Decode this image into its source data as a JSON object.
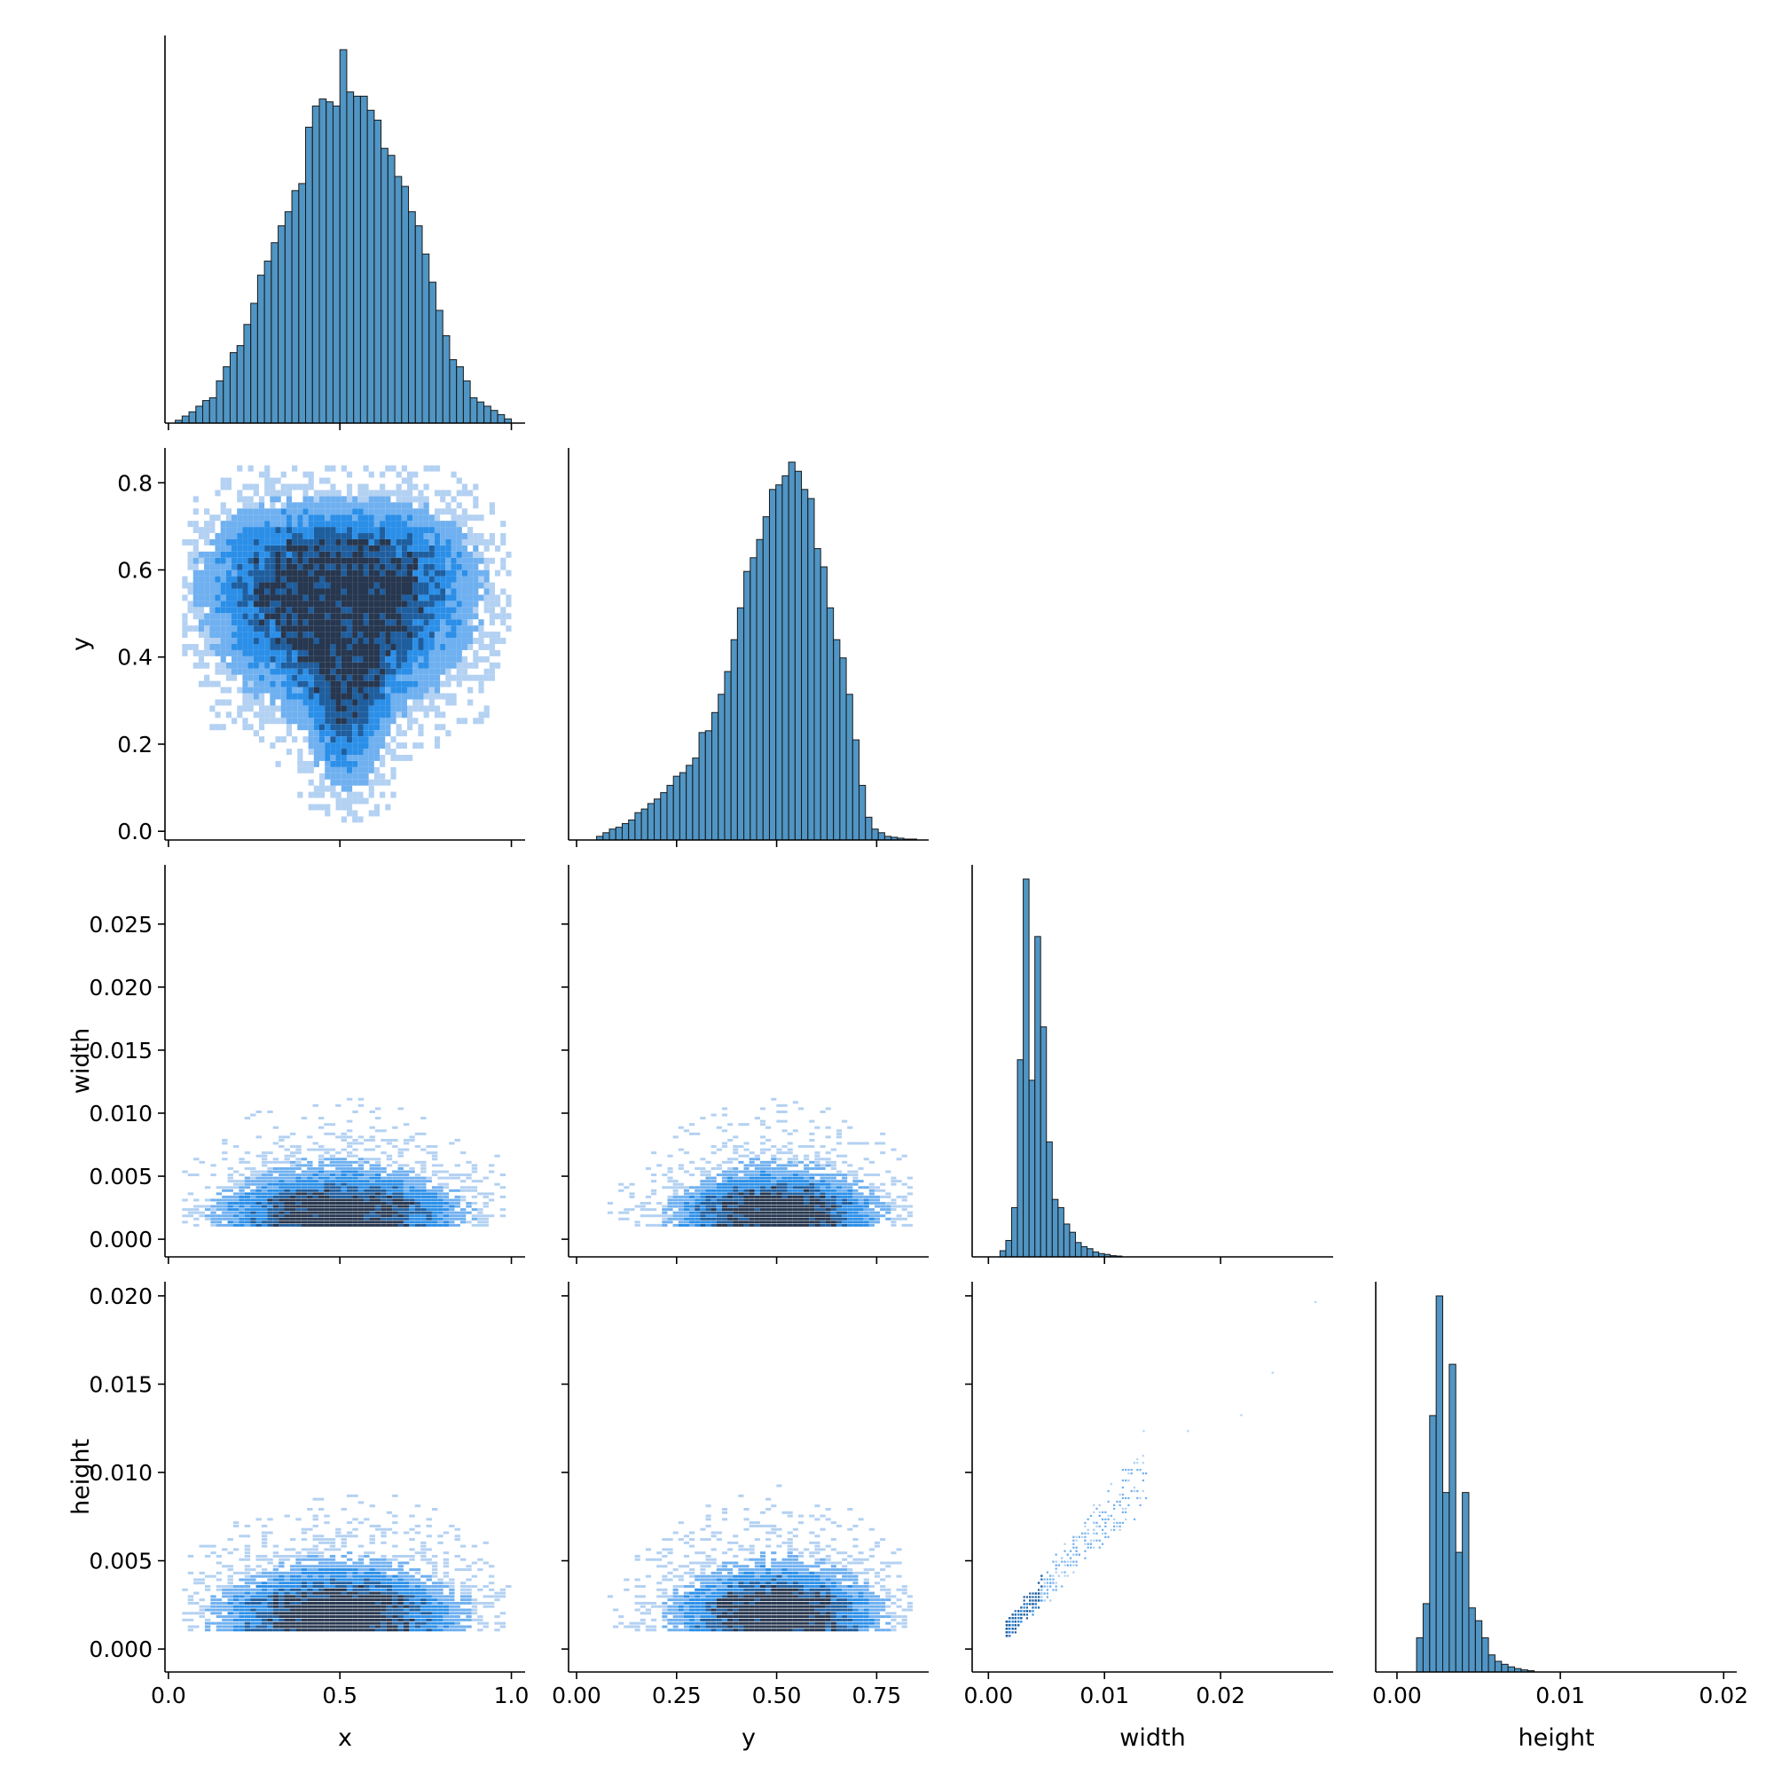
{
  "figure": {
    "type": "pairplot-corner",
    "variables": [
      "x",
      "y",
      "width",
      "height"
    ],
    "bar_color": "#1f77b4",
    "bar_edge_color": "#1a1a1a",
    "heatmap_colors": [
      "#b3d1f2",
      "#6fb0f0",
      "#2b8fe8",
      "#1f5e9e",
      "#27374f"
    ]
  },
  "chart_data": [
    {
      "type": "bar",
      "variable": "x",
      "xlim": [
        -0.01,
        1.04
      ],
      "xticks": [
        "0.0",
        "0.5",
        "1.0"
      ],
      "xtick_values": [
        0.0,
        0.5,
        1.0
      ],
      "bin_width": 0.02,
      "x": [
        0.03,
        0.05,
        0.07,
        0.09,
        0.11,
        0.13,
        0.15,
        0.17,
        0.19,
        0.21,
        0.23,
        0.25,
        0.27,
        0.29,
        0.31,
        0.33,
        0.35,
        0.37,
        0.39,
        0.41,
        0.43,
        0.45,
        0.47,
        0.49,
        0.51,
        0.53,
        0.55,
        0.57,
        0.59,
        0.61,
        0.63,
        0.65,
        0.67,
        0.69,
        0.71,
        0.73,
        0.75,
        0.77,
        0.79,
        0.81,
        0.83,
        0.85,
        0.87,
        0.89,
        0.91,
        0.93,
        0.95,
        0.97,
        0.99
      ],
      "values": [
        2,
        5,
        8,
        12,
        16,
        18,
        30,
        40,
        50,
        55,
        70,
        85,
        105,
        115,
        128,
        140,
        150,
        165,
        170,
        210,
        225,
        230,
        228,
        225,
        265,
        235,
        232,
        232,
        222,
        215,
        195,
        190,
        175,
        168,
        150,
        140,
        120,
        100,
        80,
        62,
        45,
        40,
        30,
        18,
        15,
        12,
        9,
        6,
        3
      ]
    },
    {
      "type": "heatmap",
      "x_variable": "x",
      "y_variable": "y",
      "ylabel": "y",
      "ylim": [
        -0.02,
        0.88
      ],
      "yticks": [
        "0.0",
        "0.2",
        "0.4",
        "0.6",
        "0.8"
      ],
      "ytick_values": [
        0.0,
        0.2,
        0.4,
        0.6,
        0.8
      ]
    },
    {
      "type": "bar",
      "variable": "y",
      "xlim": [
        -0.02,
        0.88
      ],
      "xticks": [
        "0.00",
        "0.25",
        "0.50",
        "0.75"
      ],
      "xtick_values": [
        0.0,
        0.25,
        0.5,
        0.75
      ],
      "bin_width": 0.016,
      "x": [
        0.058,
        0.074,
        0.09,
        0.106,
        0.122,
        0.138,
        0.154,
        0.17,
        0.186,
        0.202,
        0.218,
        0.234,
        0.25,
        0.266,
        0.282,
        0.298,
        0.314,
        0.33,
        0.346,
        0.362,
        0.378,
        0.394,
        0.41,
        0.426,
        0.442,
        0.458,
        0.474,
        0.49,
        0.506,
        0.522,
        0.538,
        0.554,
        0.57,
        0.586,
        0.602,
        0.618,
        0.634,
        0.65,
        0.666,
        0.682,
        0.698,
        0.714,
        0.73,
        0.746,
        0.762,
        0.778,
        0.794,
        0.81,
        0.826,
        0.842
      ],
      "values": [
        4,
        8,
        12,
        14,
        18,
        22,
        30,
        34,
        40,
        45,
        52,
        60,
        70,
        74,
        82,
        90,
        118,
        120,
        140,
        160,
        185,
        220,
        255,
        295,
        310,
        330,
        355,
        385,
        390,
        400,
        415,
        405,
        385,
        375,
        320,
        300,
        255,
        220,
        200,
        160,
        110,
        60,
        25,
        12,
        8,
        4,
        3,
        2,
        1,
        1
      ]
    },
    {
      "type": "heatmap",
      "x_variable": "x",
      "y_variable": "width",
      "ylabel": "width",
      "ylim": [
        -0.0014,
        0.0297
      ],
      "yticks": [
        "0.000",
        "0.005",
        "0.010",
        "0.015",
        "0.020",
        "0.025"
      ],
      "ytick_values": [
        0.0,
        0.005,
        0.01,
        0.015,
        0.02,
        0.025
      ]
    },
    {
      "type": "heatmap",
      "x_variable": "y",
      "y_variable": "width"
    },
    {
      "type": "bar",
      "variable": "width",
      "xlim": [
        -0.0014,
        0.0297
      ],
      "xticks": [
        "0.00",
        "0.01",
        "0.02"
      ],
      "xtick_values": [
        0.0,
        0.01,
        0.02
      ],
      "bin_width": 0.0005,
      "x": [
        0.00125,
        0.00175,
        0.00225,
        0.00275,
        0.00325,
        0.00375,
        0.00425,
        0.00475,
        0.00525,
        0.00575,
        0.00625,
        0.00675,
        0.00725,
        0.00775,
        0.00825,
        0.00875,
        0.00925,
        0.00975,
        0.01025,
        0.01075,
        0.01125
      ],
      "values": [
        15,
        40,
        120,
        480,
        920,
        430,
        780,
        560,
        280,
        140,
        120,
        80,
        60,
        35,
        25,
        20,
        12,
        8,
        6,
        3,
        2
      ]
    },
    {
      "type": "heatmap",
      "x_variable": "x",
      "y_variable": "height",
      "ylabel": "height",
      "ylim": [
        -0.0013,
        0.0208
      ],
      "yticks": [
        "0.000",
        "0.005",
        "0.010",
        "0.015",
        "0.020"
      ],
      "ytick_values": [
        0.0,
        0.005,
        0.01,
        0.015,
        0.02
      ],
      "xlabel": "x"
    },
    {
      "type": "heatmap",
      "x_variable": "y",
      "y_variable": "height",
      "xlabel": "y"
    },
    {
      "type": "heatmap",
      "x_variable": "width",
      "y_variable": "height",
      "xlabel": "width"
    },
    {
      "type": "bar",
      "variable": "height",
      "xlabel": "height",
      "xlim": [
        -0.0013,
        0.0208
      ],
      "xticks": [
        "0.00",
        "0.01",
        "0.02"
      ],
      "xtick_values": [
        0.0,
        0.01,
        0.02
      ],
      "bin_width": 0.0004,
      "x": [
        0.0014,
        0.0018,
        0.0022,
        0.0026,
        0.003,
        0.0034,
        0.0038,
        0.0042,
        0.0046,
        0.005,
        0.0054,
        0.0058,
        0.0062,
        0.0066,
        0.007,
        0.0074,
        0.0078,
        0.0082
      ],
      "values": [
        80,
        160,
        600,
        880,
        420,
        720,
        280,
        420,
        150,
        120,
        80,
        40,
        25,
        18,
        12,
        8,
        5,
        3
      ]
    }
  ]
}
